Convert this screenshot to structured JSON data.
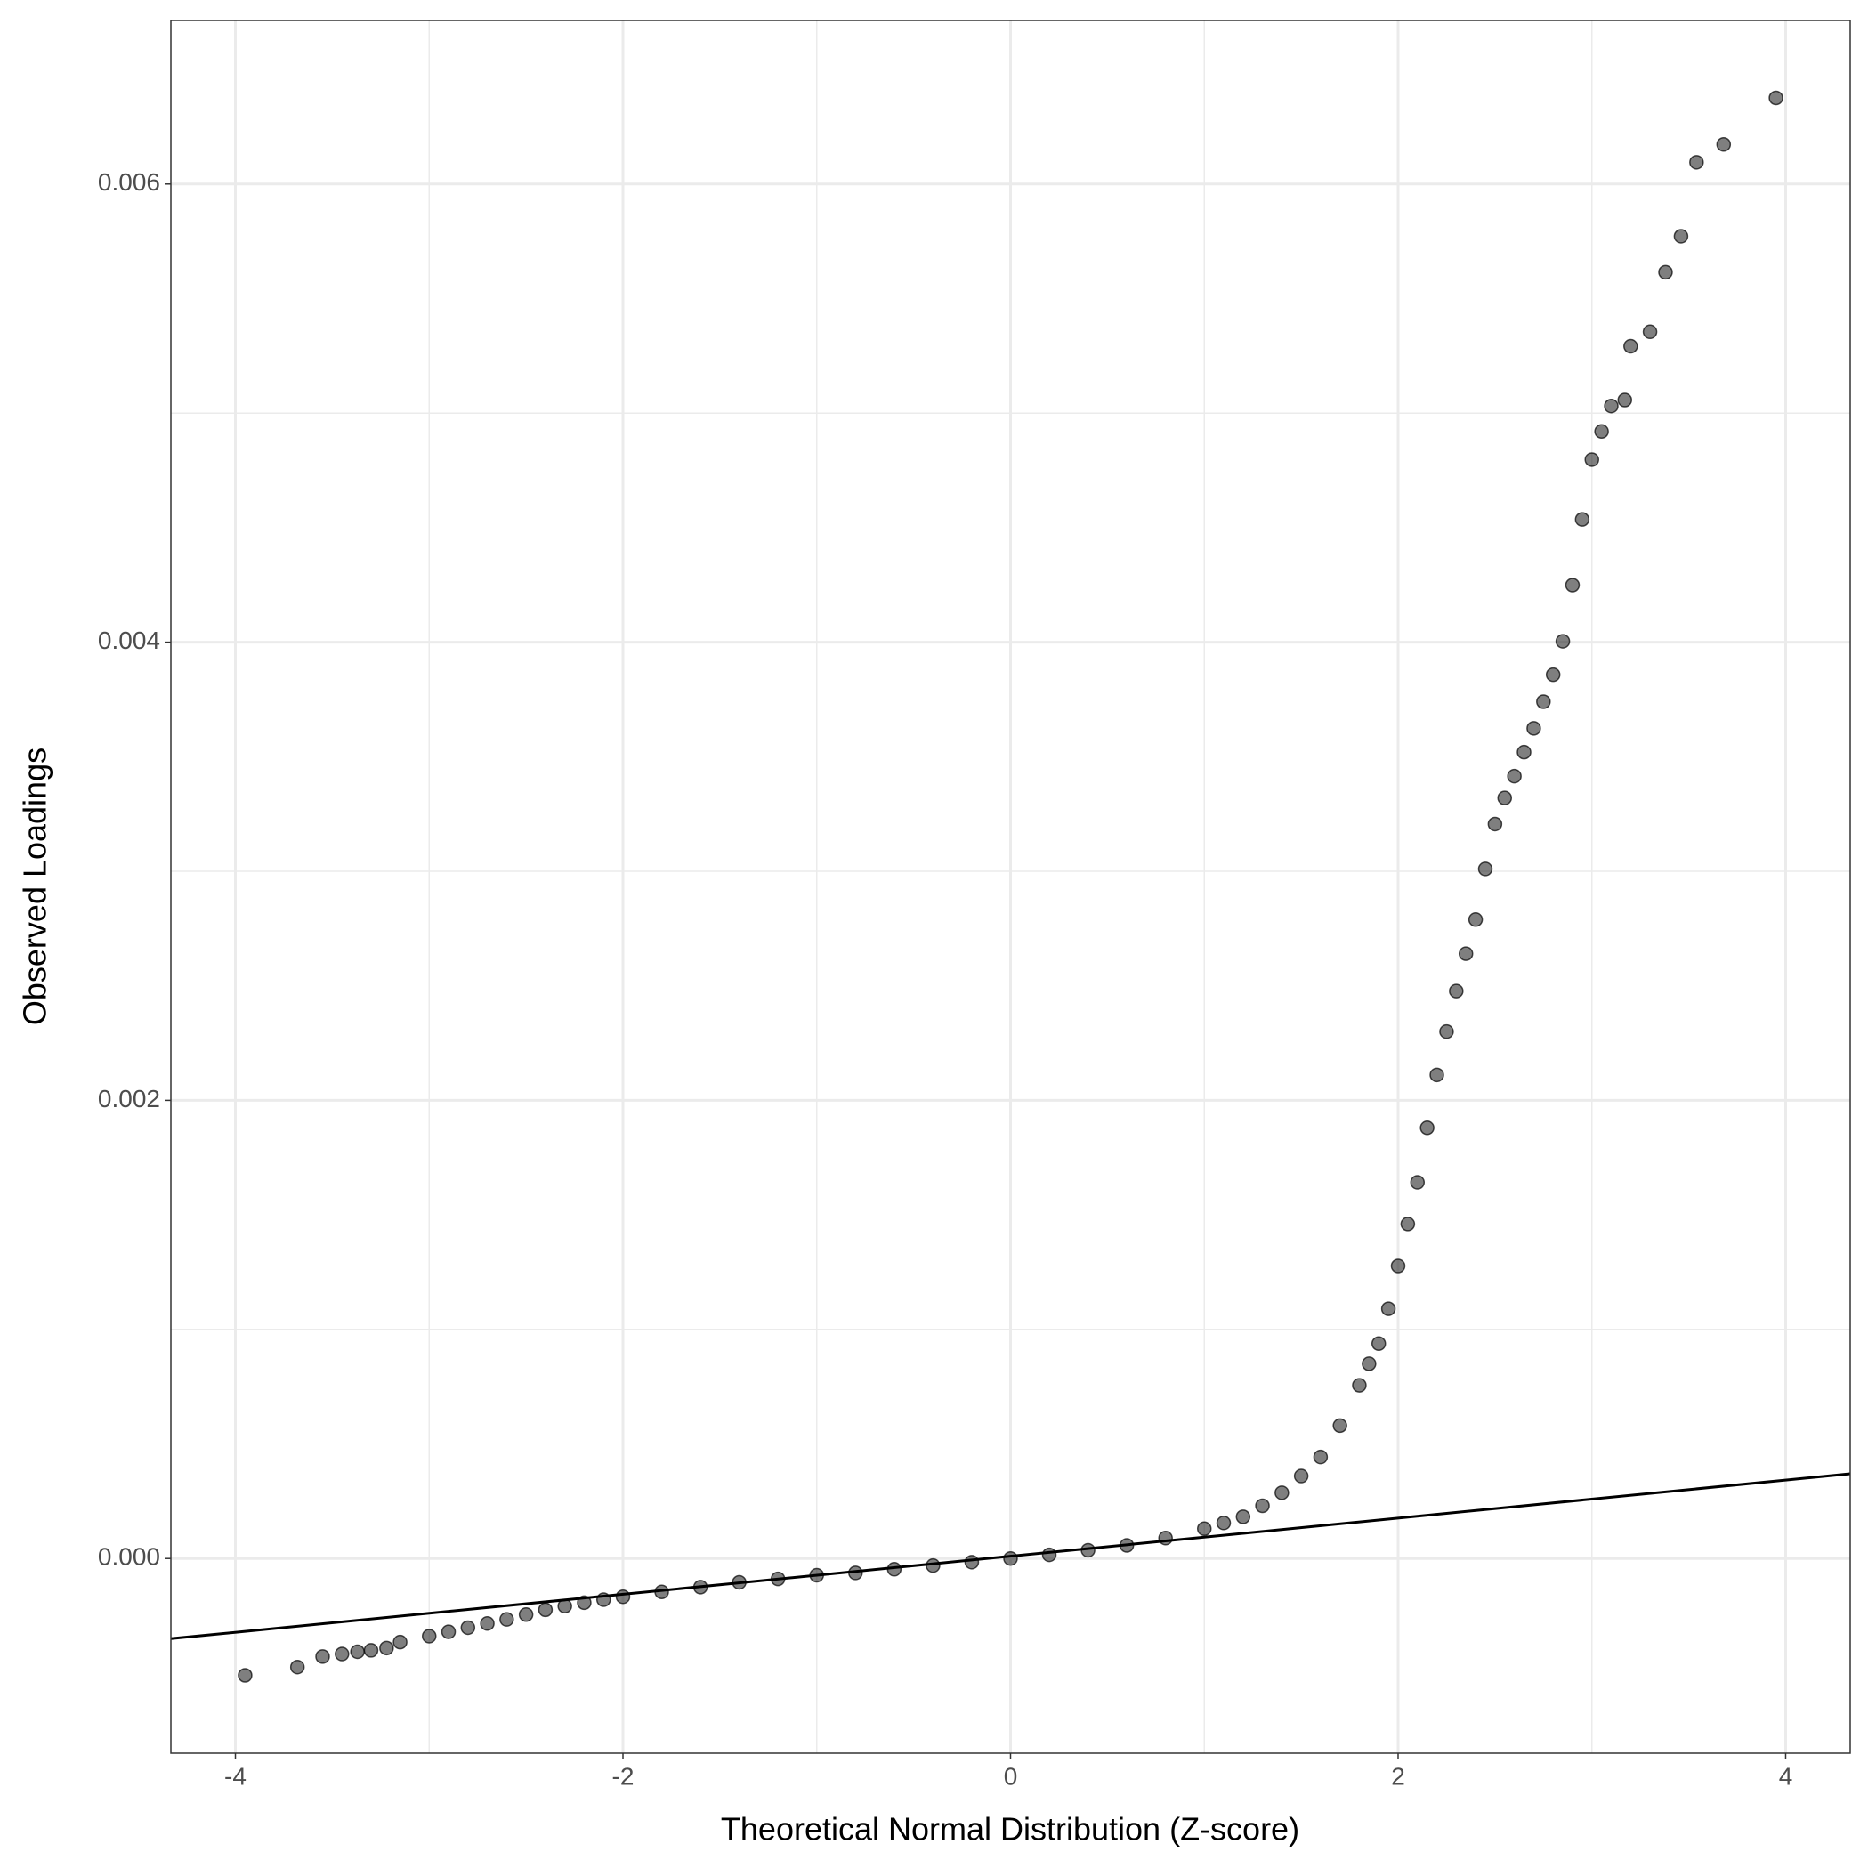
{
  "chart_data": {
    "type": "scatter",
    "x_label": "Theoretical Normal Distribution (Z-score)",
    "y_label": "Observed Loadings",
    "xlim": [
      -4.333,
      4.333
    ],
    "ylim": [
      -0.00085,
      0.006714
    ],
    "xticks": [
      -4,
      -2,
      0,
      2,
      4
    ],
    "yticks": [
      {
        "value": 0,
        "label": "0.000"
      },
      {
        "value": 0.002,
        "label": "0.002"
      },
      {
        "value": 0.004,
        "label": "0.004"
      },
      {
        "value": 0.006,
        "label": "0.006"
      }
    ],
    "x_minor_ticks": [
      -3,
      -1,
      1,
      3
    ],
    "y_minor_ticks": [
      0.001,
      0.003,
      0.005
    ],
    "grid": true,
    "point_color": "#000000",
    "point_alpha": 0.5,
    "x": [
      -3.95,
      -3.68,
      -3.55,
      -3.45,
      -3.37,
      -3.3,
      -3.22,
      -3.15,
      -3.0,
      -2.9,
      -2.8,
      -2.7,
      -2.6,
      -2.5,
      -2.4,
      -2.3,
      -2.2,
      -2.1,
      -2.0,
      -1.8,
      -1.6,
      -1.4,
      -1.2,
      -1.0,
      -0.8,
      -0.6,
      -0.4,
      -0.2,
      0,
      0.2,
      0.4,
      0.6,
      0.8,
      1.0,
      1.1,
      1.2,
      1.3,
      1.4,
      1.5,
      1.6,
      1.7,
      1.8,
      1.85,
      1.9,
      1.95,
      2.0,
      2.05,
      2.1,
      2.15,
      2.2,
      2.25,
      2.3,
      2.35,
      2.4,
      2.45,
      2.5,
      2.55,
      2.6,
      2.65,
      2.7,
      2.75,
      2.8,
      2.85,
      2.9,
      2.95,
      3.0,
      3.05,
      3.1,
      3.17,
      3.2,
      3.3,
      3.38,
      3.46,
      3.54,
      3.68,
      3.95
    ],
    "y": [
      -0.00051,
      -0.000474,
      -0.000428,
      -0.000417,
      -0.000407,
      -0.000401,
      -0.000391,
      -0.000365,
      -0.000339,
      -0.00032,
      -0.000302,
      -0.000284,
      -0.000266,
      -0.000245,
      -0.000224,
      -0.000208,
      -0.000193,
      -0.00018,
      -0.000167,
      -0.000146,
      -0.000125,
      -0.000104,
      -8.9e-05,
      -7.3e-05,
      -6.3e-05,
      -4.7e-05,
      -3.1e-05,
      -1.6e-05,
      0,
      1.6e-05,
      3.6e-05,
      5.7e-05,
      8.9e-05,
      0.00013,
      0.000155,
      0.000182,
      0.00023,
      0.000287,
      0.00036,
      0.000443,
      0.00058,
      0.000756,
      0.00085,
      0.000938,
      0.00109,
      0.001277,
      0.00146,
      0.001642,
      0.00188,
      0.002111,
      0.0023,
      0.002477,
      0.00264,
      0.002789,
      0.00301,
      0.003206,
      0.00332,
      0.003415,
      0.00352,
      0.003624,
      0.00374,
      0.003858,
      0.004004,
      0.004249,
      0.004536,
      0.004797,
      0.00492,
      0.005031,
      0.005057,
      0.005292,
      0.005355,
      0.005615,
      0.005772,
      0.006095,
      0.006173,
      0.006376
    ],
    "reference_line": {
      "x": [
        -4.333,
        4.333
      ],
      "y": [
        -0.00035,
        0.00037
      ],
      "color": "#000000"
    }
  }
}
